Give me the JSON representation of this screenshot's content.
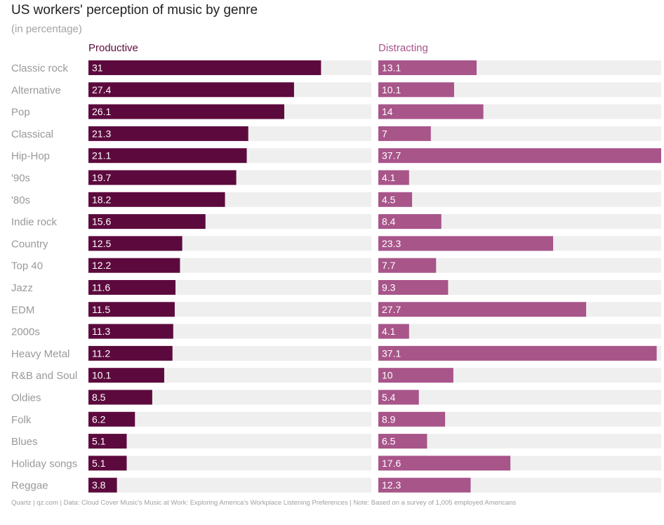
{
  "title": "US workers' perception of music by genre",
  "subtitle": "(in percentage)",
  "footer": "Quartz | qz.com | Data: Cloud Cover Music's Music at Work: Exploring America's Workplace Listening Preferences | Note: Based on a survey of 1,005 employed Americans",
  "colors": {
    "productive": "#5c0a3d",
    "distracting": "#a8558a",
    "track": "#efefef",
    "category_label": "#999999",
    "value_label": "#ffffff"
  },
  "chart_data": {
    "type": "bar",
    "orientation": "horizontal",
    "categories": [
      "Classic rock",
      "Alternative",
      "Pop",
      "Classical",
      "Hip-Hop",
      "'90s",
      "'80s",
      "Indie rock",
      "Country",
      "Top 40",
      "Jazz",
      "EDM",
      "2000s",
      "Heavy Metal",
      "R&B and Soul",
      "Oldies",
      "Folk",
      "Blues",
      "Holiday songs",
      "Reggae"
    ],
    "series": [
      {
        "name": "Productive",
        "values": [
          31,
          27.4,
          26.1,
          21.3,
          21.1,
          19.7,
          18.2,
          15.6,
          12.5,
          12.2,
          11.6,
          11.5,
          11.3,
          11.2,
          10.1,
          8.5,
          6.2,
          5.1,
          5.1,
          3.8
        ],
        "xlim": [
          0,
          37.7
        ]
      },
      {
        "name": "Distracting",
        "values": [
          13.1,
          10.1,
          14,
          7,
          37.7,
          4.1,
          4.5,
          8.4,
          23.3,
          7.7,
          9.3,
          27.7,
          4.1,
          37.1,
          10,
          5.4,
          8.9,
          6.5,
          17.6,
          12.3
        ],
        "xlim": [
          0,
          37.7
        ]
      }
    ],
    "grid": false,
    "legend": "column headers above each panel"
  }
}
